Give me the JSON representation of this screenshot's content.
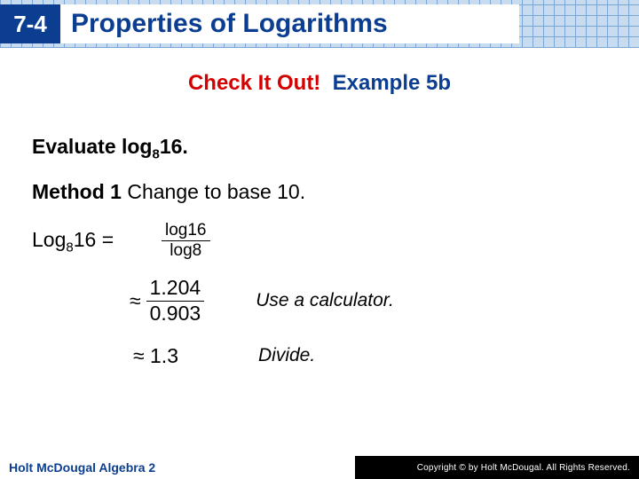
{
  "header": {
    "lesson_number": "7-4",
    "title": "Properties of Logarithms",
    "colors": {
      "badge_bg": "#0b3e91",
      "badge_fg": "#ffffff",
      "title_color": "#0b3e91",
      "grid_line": "#7aa6d6",
      "grid_bg": "#c9dbef"
    }
  },
  "subtitle": {
    "check_text": "Check It Out!",
    "example_text": "Example 5b",
    "check_color": "#d50000",
    "example_color": "#0b3e91"
  },
  "content": {
    "prompt_prefix": "Evaluate log",
    "prompt_base": "8",
    "prompt_arg": "16.",
    "method_label": "Method 1",
    "method_text": " Change to base 10.",
    "equation": {
      "lhs_prefix": "Log",
      "lhs_base": "8",
      "lhs_arg": "16 =",
      "frac_num": "log16",
      "frac_den": "log8"
    },
    "step2": {
      "approx_sym": "≈",
      "frac_num": "1.204",
      "frac_den": "0.903",
      "explain": "Use a calculator."
    },
    "step3": {
      "result": "≈ 1.3",
      "explain": "Divide."
    }
  },
  "footer": {
    "left": "Holt McDougal Algebra 2",
    "right": "Copyright © by Holt McDougal. All Rights Reserved."
  }
}
